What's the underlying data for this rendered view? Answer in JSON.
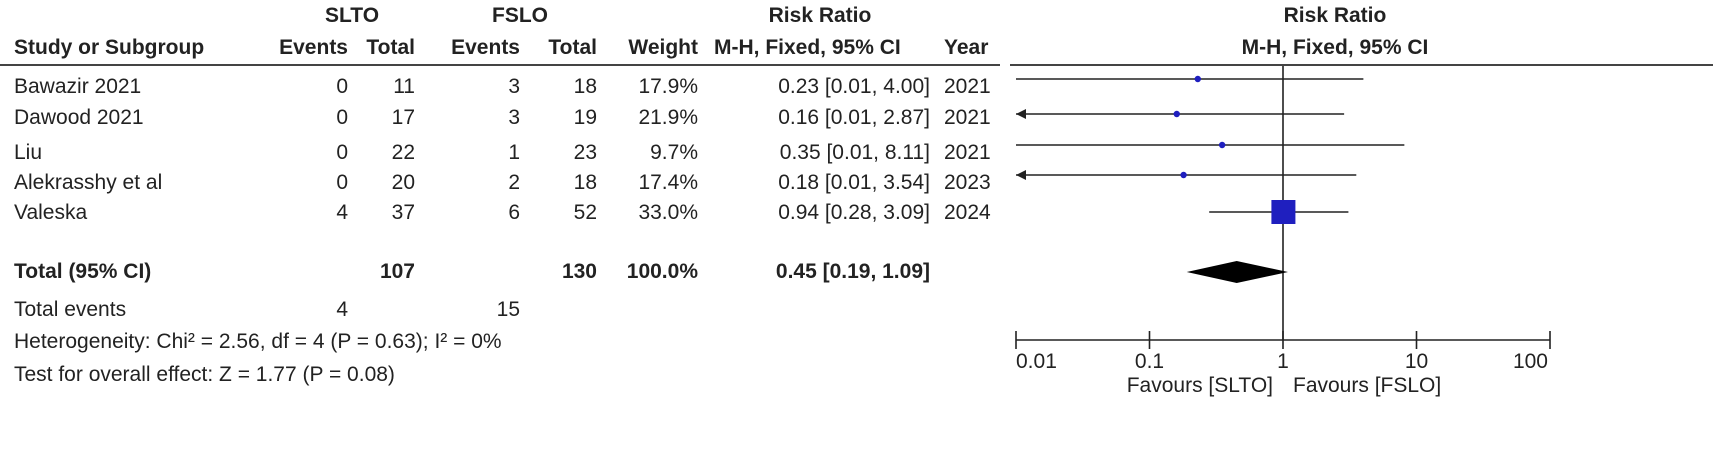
{
  "header": {
    "group1": "SLTO",
    "group2": "FSLO",
    "rr_title": "Risk Ratio",
    "plot_title": "Risk Ratio",
    "plot_subtitle": "M-H, Fixed, 95% CI",
    "columns": {
      "study": "Study or Subgroup",
      "events1": "Events",
      "total1": "Total",
      "events2": "Events",
      "total2": "Total",
      "weight": "Weight",
      "rr": "M-H, Fixed, 95% CI",
      "year": "Year"
    }
  },
  "studies": [
    {
      "name": "Bawazir 2021",
      "events1": "0",
      "total1": "11",
      "events2": "3",
      "total2": "18",
      "weight": "17.9%",
      "rr_text": "0.23 [0.01, 4.00]",
      "year": "2021"
    },
    {
      "name": "Dawood 2021",
      "events1": "0",
      "total1": "17",
      "events2": "3",
      "total2": "19",
      "weight": "21.9%",
      "rr_text": "0.16 [0.01, 2.87]",
      "year": "2021"
    },
    {
      "name": "Liu",
      "events1": "0",
      "total1": "22",
      "events2": "1",
      "total2": "23",
      "weight": "9.7%",
      "rr_text": "0.35 [0.01, 8.11]",
      "year": "2021"
    },
    {
      "name": "Alekrasshy et al",
      "events1": "0",
      "total1": "20",
      "events2": "2",
      "total2": "18",
      "weight": "17.4%",
      "rr_text": "0.18 [0.01, 3.54]",
      "year": "2023"
    },
    {
      "name": "Valeska",
      "events1": "4",
      "total1": "37",
      "events2": "6",
      "total2": "52",
      "weight": "33.0%",
      "rr_text": "0.94 [0.28, 3.09]",
      "year": "2024"
    }
  ],
  "total": {
    "label": "Total (95% CI)",
    "total1": "107",
    "total2": "130",
    "weight": "100.0%",
    "rr_text": "0.45 [0.19, 1.09]"
  },
  "total_events": {
    "label": "Total events",
    "events1": "4",
    "events2": "15"
  },
  "heterogeneity": "Heterogeneity: Chi² = 2.56, df = 4 (P = 0.63); I² = 0%",
  "overall_effect": "Test for overall effect: Z = 1.77 (P = 0.08)",
  "chart_data": {
    "type": "forest",
    "title": "Risk Ratio",
    "subtitle": "M-H, Fixed, 95% CI",
    "x_scale": "log",
    "xlim": [
      0.01,
      100
    ],
    "x_ticks": [
      0.01,
      0.1,
      1,
      10,
      100
    ],
    "x_tick_labels": [
      "0.01",
      "0.1",
      "1",
      "10",
      "100"
    ],
    "favours_left": "Favours [SLTO]",
    "favours_right": "Favours [FSLO]",
    "reference_line": 1,
    "colors": {
      "marker": "#1f1fbf",
      "line": "#222222",
      "summary": "#000000"
    },
    "studies": [
      {
        "name": "Bawazir 2021",
        "estimate": 0.23,
        "lower": 0.01,
        "upper": 4.0,
        "weight": 17.9
      },
      {
        "name": "Dawood 2021",
        "estimate": 0.16,
        "lower": 0.01,
        "upper": 2.87,
        "weight": 21.9
      },
      {
        "name": "Liu",
        "estimate": 0.35,
        "lower": 0.01,
        "upper": 8.11,
        "weight": 9.7
      },
      {
        "name": "Alekrasshy et al",
        "estimate": 0.18,
        "lower": 0.01,
        "upper": 3.54,
        "weight": 17.4
      },
      {
        "name": "Valeska",
        "estimate": 0.94,
        "lower": 0.28,
        "upper": 3.09,
        "weight": 33.0
      }
    ],
    "summary": {
      "estimate": 0.45,
      "lower": 0.19,
      "upper": 1.09
    }
  }
}
